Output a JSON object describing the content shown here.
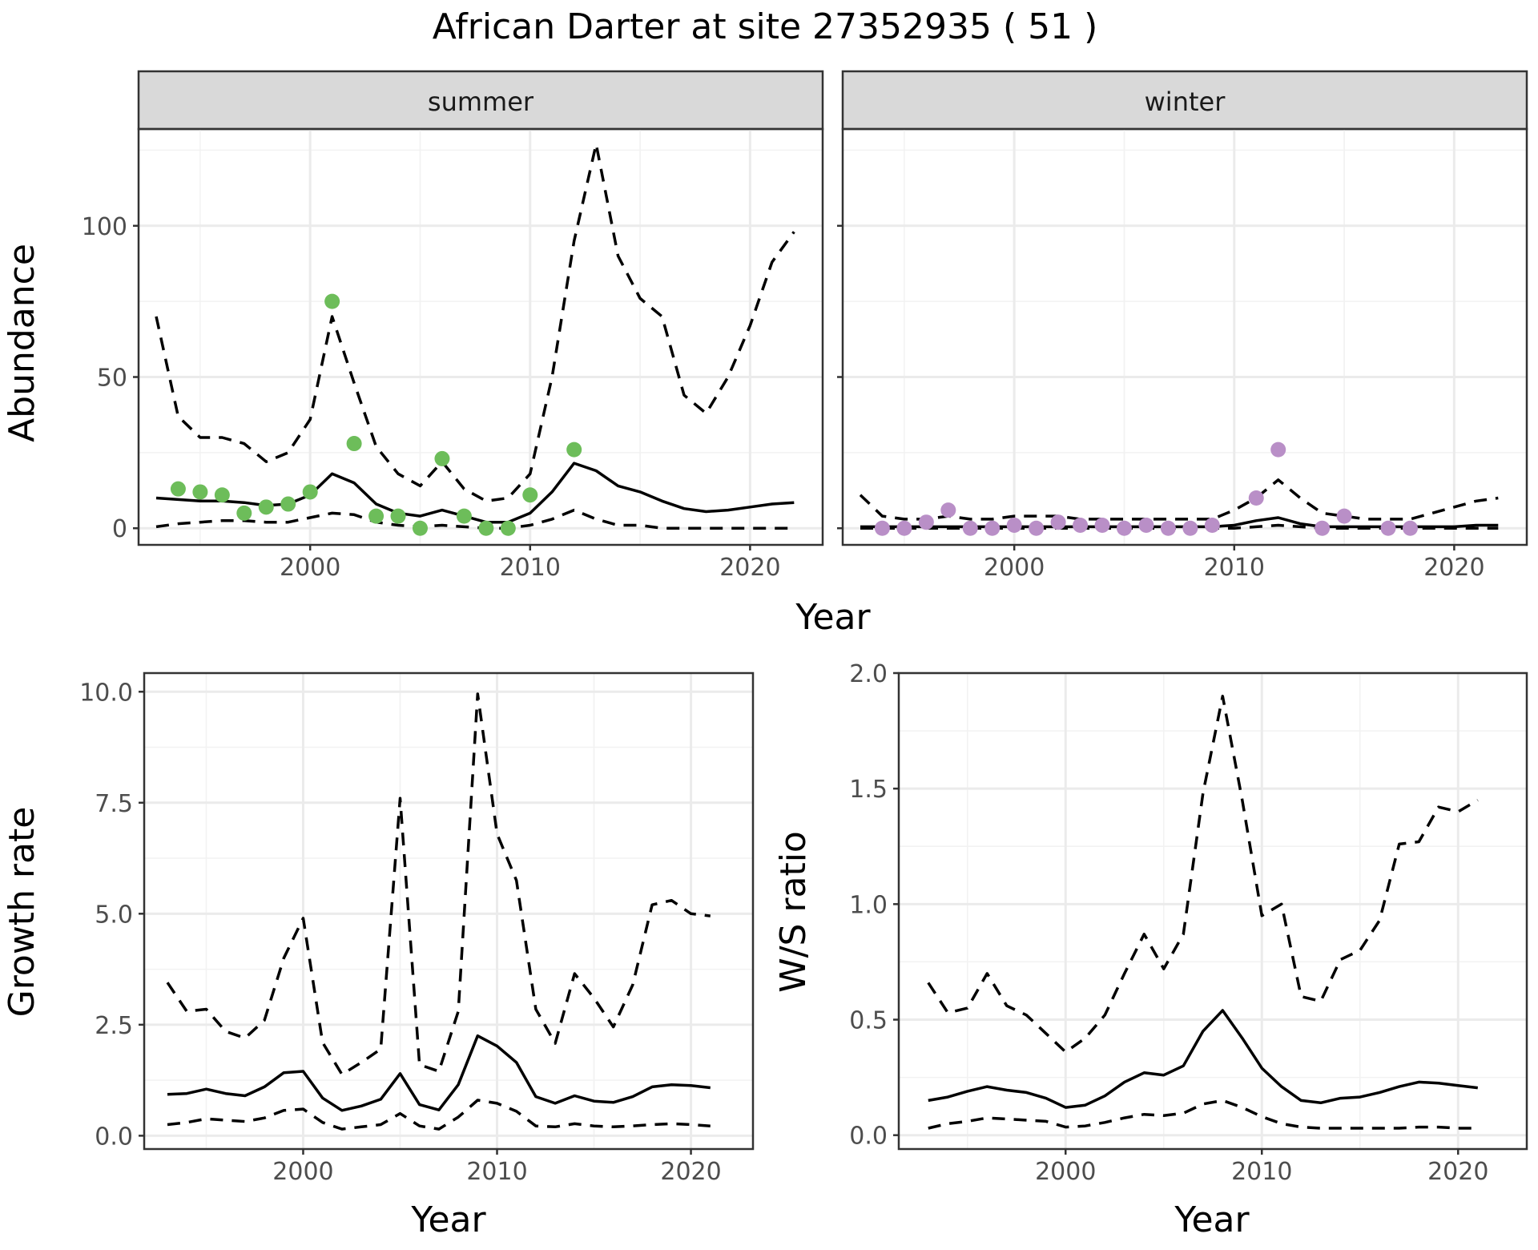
{
  "chart_data": {
    "type": "line",
    "title": "African Darter at site 27352935 ( 51 )",
    "colors": {
      "summer_points": "#6dbd5a",
      "winter_points": "#b98fc7",
      "lines": "#000000"
    },
    "panels": [
      {
        "id": "summer",
        "strip": "summer",
        "xlabel": "",
        "ylabel": "Abundance",
        "xlim": [
          1992.2,
          2023.3
        ],
        "ylim": [
          -5.5,
          132
        ],
        "xticks": [
          2000,
          2010,
          2020
        ],
        "yticks": [
          0,
          50,
          100
        ],
        "ytick_labels": [
          "0",
          "50",
          "100"
        ],
        "grid": true,
        "series": [
          {
            "role": "mean",
            "style": "solid",
            "x": [
              1993,
              1994,
              1995,
              1996,
              1997,
              1998,
              1999,
              2000,
              2001,
              2002,
              2003,
              2004,
              2005,
              2006,
              2007,
              2008,
              2009,
              2010,
              2011,
              2012,
              2013,
              2014,
              2015,
              2016,
              2017,
              2018,
              2019,
              2020,
              2021,
              2022
            ],
            "y": [
              10,
              9.5,
              9,
              9,
              8.5,
              7.5,
              8,
              11,
              18,
              15,
              8,
              5,
              4,
              6,
              4,
              2,
              2,
              5,
              12,
              21.5,
              19,
              14,
              12,
              9,
              6.5,
              5.5,
              6,
              7,
              8,
              8.5
            ]
          },
          {
            "role": "upper",
            "style": "dashed",
            "x": [
              1993,
              1994,
              1995,
              1996,
              1997,
              1998,
              1999,
              2000,
              2001,
              2002,
              2003,
              2004,
              2005,
              2006,
              2007,
              2008,
              2009,
              2010,
              2011,
              2012,
              2013,
              2014,
              2015,
              2016,
              2017,
              2018,
              2019,
              2020,
              2021,
              2022
            ],
            "y": [
              70,
              37,
              30,
              30,
              28,
              22,
              25,
              36,
              70,
              48,
              27,
              18,
              14,
              22,
              13,
              9,
              10,
              18,
              50,
              95,
              127,
              90,
              76,
              70,
              44,
              38,
              50,
              67,
              88,
              98
            ]
          },
          {
            "role": "lower",
            "style": "dashed",
            "x": [
              1993,
              1994,
              1995,
              1996,
              1997,
              1998,
              1999,
              2000,
              2001,
              2002,
              2003,
              2004,
              2005,
              2006,
              2007,
              2008,
              2009,
              2010,
              2011,
              2012,
              2013,
              2014,
              2015,
              2016,
              2017,
              2018,
              2019,
              2020,
              2021,
              2022
            ],
            "y": [
              0.5,
              1.5,
              2,
              2.5,
              2.5,
              2,
              2,
              3.5,
              5,
              4.5,
              2,
              1,
              0.5,
              1,
              0.5,
              0,
              0,
              1,
              3,
              6,
              3,
              1,
              1,
              0,
              0,
              0,
              0,
              0,
              0,
              0
            ]
          },
          {
            "role": "observed",
            "style": "points",
            "color": "#6dbd5a",
            "x": [
              1994,
              1995,
              1996,
              1997,
              1998,
              1999,
              2000,
              2001,
              2002,
              2003,
              2004,
              2005,
              2006,
              2007,
              2008,
              2009,
              2010,
              2012
            ],
            "y": [
              13,
              12,
              11,
              5,
              7,
              8,
              12,
              75,
              28,
              4,
              4,
              0,
              23,
              4,
              0,
              0,
              11,
              26
            ]
          }
        ]
      },
      {
        "id": "winter",
        "strip": "winter",
        "xlabel": "",
        "ylabel": "",
        "xlim": [
          1992.2,
          2023.3
        ],
        "ylim": [
          -5.5,
          132
        ],
        "xticks": [
          2000,
          2010,
          2020
        ],
        "yticks": [
          0,
          50,
          100
        ],
        "ytick_labels": [
          "",
          "",
          ""
        ],
        "grid": true,
        "series": [
          {
            "role": "mean",
            "style": "solid",
            "x": [
              1993,
              1994,
              1995,
              1996,
              1997,
              1998,
              1999,
              2000,
              2001,
              2002,
              2003,
              2004,
              2005,
              2006,
              2007,
              2008,
              2009,
              2010,
              2011,
              2012,
              2013,
              2014,
              2015,
              2016,
              2017,
              2018,
              2019,
              2020,
              2021,
              2022
            ],
            "y": [
              0.5,
              0.5,
              0.5,
              0.5,
              0.5,
              0.5,
              0.5,
              0.5,
              0.5,
              0.5,
              0.5,
              0.5,
              0.5,
              0.5,
              0.5,
              0.5,
              0.5,
              1,
              2.5,
              3.5,
              1.5,
              0.5,
              0.5,
              0.5,
              0.5,
              0.5,
              0.5,
              0.5,
              1,
              1
            ]
          },
          {
            "role": "upper",
            "style": "dashed",
            "x": [
              1993,
              1994,
              1995,
              1996,
              1997,
              1998,
              1999,
              2000,
              2001,
              2002,
              2003,
              2004,
              2005,
              2006,
              2007,
              2008,
              2009,
              2010,
              2011,
              2012,
              2013,
              2014,
              2015,
              2016,
              2017,
              2018,
              2019,
              2020,
              2021,
              2022
            ],
            "y": [
              11,
              4,
              3,
              3,
              4,
              3,
              3,
              4,
              4,
              4,
              3,
              3,
              3,
              3,
              3,
              3,
              3,
              6,
              10,
              16,
              10,
              5,
              4,
              3,
              3,
              3,
              5,
              7,
              9,
              10
            ]
          },
          {
            "role": "lower",
            "style": "dashed",
            "x": [
              1993,
              1994,
              1995,
              1996,
              1997,
              1998,
              1999,
              2000,
              2001,
              2002,
              2003,
              2004,
              2005,
              2006,
              2007,
              2008,
              2009,
              2010,
              2011,
              2012,
              2013,
              2014,
              2015,
              2016,
              2017,
              2018,
              2019,
              2020,
              2021,
              2022
            ],
            "y": [
              0,
              0,
              0,
              0,
              0,
              0,
              0,
              0,
              0,
              0,
              0,
              0,
              0,
              0,
              0,
              0,
              0,
              0,
              0.5,
              1,
              0.5,
              0,
              0,
              0,
              0,
              0,
              0,
              0,
              0,
              0
            ]
          },
          {
            "role": "observed",
            "style": "points",
            "color": "#b98fc7",
            "x": [
              1994,
              1995,
              1996,
              1997,
              1998,
              1999,
              2000,
              2001,
              2002,
              2003,
              2004,
              2005,
              2006,
              2007,
              2008,
              2009,
              2011,
              2012,
              2014,
              2015,
              2017,
              2018
            ],
            "y": [
              0,
              0,
              2,
              6,
              0,
              0,
              1,
              0,
              2,
              1,
              1,
              0,
              1,
              0,
              0,
              1,
              10,
              26,
              0,
              4,
              0,
              0
            ]
          }
        ]
      },
      {
        "id": "growth",
        "strip": "",
        "xlabel": "Year",
        "ylabel": "Growth rate",
        "xlim": [
          1991.8,
          2023.2
        ],
        "ylim": [
          -0.3,
          10.42
        ],
        "xticks": [
          2000,
          2010,
          2020
        ],
        "yticks": [
          0,
          2.5,
          5,
          7.5,
          10
        ],
        "ytick_labels": [
          "0.0",
          "2.5",
          "5.0",
          "7.5",
          "10.0"
        ],
        "grid": true,
        "series": [
          {
            "role": "mean",
            "style": "solid",
            "x": [
              1993,
              1994,
              1995,
              1996,
              1997,
              1998,
              1999,
              2000,
              2001,
              2002,
              2003,
              2004,
              2005,
              2006,
              2007,
              2008,
              2009,
              2010,
              2011,
              2012,
              2013,
              2014,
              2015,
              2016,
              2017,
              2018,
              2019,
              2020,
              2021
            ],
            "y": [
              0.93,
              0.95,
              1.05,
              0.95,
              0.9,
              1.1,
              1.42,
              1.45,
              0.85,
              0.57,
              0.67,
              0.82,
              1.4,
              0.7,
              0.58,
              1.15,
              2.25,
              2.02,
              1.65,
              0.88,
              0.73,
              0.9,
              0.78,
              0.75,
              0.88,
              1.1,
              1.15,
              1.13,
              1.08
            ]
          },
          {
            "role": "upper",
            "style": "dashed",
            "x": [
              1993,
              1994,
              1995,
              1996,
              1997,
              1998,
              1999,
              2000,
              2001,
              2002,
              2003,
              2004,
              2005,
              2006,
              2007,
              2008,
              2009,
              2010,
              2011,
              2012,
              2013,
              2014,
              2015,
              2016,
              2017,
              2018,
              2019,
              2020,
              2021
            ],
            "y": [
              3.45,
              2.8,
              2.85,
              2.35,
              2.2,
              2.6,
              4.0,
              4.9,
              2.1,
              1.38,
              1.65,
              1.95,
              7.6,
              1.6,
              1.45,
              2.8,
              9.95,
              6.8,
              5.75,
              2.85,
              2.08,
              3.65,
              3.1,
              2.45,
              3.4,
              5.2,
              5.3,
              5.0,
              4.95
            ]
          },
          {
            "role": "lower",
            "style": "dashed",
            "x": [
              1993,
              1994,
              1995,
              1996,
              1997,
              1998,
              1999,
              2000,
              2001,
              2002,
              2003,
              2004,
              2005,
              2006,
              2007,
              2008,
              2009,
              2010,
              2011,
              2012,
              2013,
              2014,
              2015,
              2016,
              2017,
              2018,
              2019,
              2020,
              2021
            ],
            "y": [
              0.25,
              0.3,
              0.38,
              0.35,
              0.32,
              0.4,
              0.57,
              0.6,
              0.3,
              0.15,
              0.2,
              0.25,
              0.5,
              0.22,
              0.15,
              0.42,
              0.8,
              0.73,
              0.55,
              0.22,
              0.2,
              0.27,
              0.22,
              0.2,
              0.22,
              0.25,
              0.27,
              0.25,
              0.22
            ]
          }
        ]
      },
      {
        "id": "ws_ratio",
        "strip": "",
        "xlabel": "Year",
        "ylabel": "W/S ratio",
        "xlim": [
          1991.5,
          2023.5
        ],
        "ylim": [
          -0.06,
          2.0
        ],
        "xticks": [
          2000,
          2010,
          2020
        ],
        "yticks": [
          0,
          0.5,
          1,
          1.5,
          2
        ],
        "ytick_labels": [
          "0.0",
          "0.5",
          "1.0",
          "1.5",
          "2.0"
        ],
        "grid": true,
        "series": [
          {
            "role": "mean",
            "style": "solid",
            "x": [
              1993,
              1994,
              1995,
              1996,
              1997,
              1998,
              1999,
              2000,
              2001,
              2002,
              2003,
              2004,
              2005,
              2006,
              2007,
              2008,
              2009,
              2010,
              2011,
              2012,
              2013,
              2014,
              2015,
              2016,
              2017,
              2018,
              2019,
              2020,
              2021
            ],
            "y": [
              0.15,
              0.165,
              0.19,
              0.21,
              0.195,
              0.185,
              0.16,
              0.12,
              0.13,
              0.17,
              0.23,
              0.27,
              0.26,
              0.3,
              0.45,
              0.54,
              0.42,
              0.29,
              0.21,
              0.15,
              0.14,
              0.16,
              0.165,
              0.185,
              0.21,
              0.23,
              0.225,
              0.215,
              0.205
            ]
          },
          {
            "role": "upper",
            "style": "dashed",
            "x": [
              1993,
              1994,
              1995,
              1996,
              1997,
              1998,
              1999,
              2000,
              2001,
              2002,
              2003,
              2004,
              2005,
              2006,
              2007,
              2008,
              2009,
              2010,
              2011,
              2012,
              2013,
              2014,
              2015,
              2016,
              2017,
              2018,
              2019,
              2020,
              2021
            ],
            "y": [
              0.66,
              0.53,
              0.55,
              0.7,
              0.56,
              0.52,
              0.44,
              0.36,
              0.42,
              0.52,
              0.7,
              0.87,
              0.72,
              0.87,
              1.48,
              1.9,
              1.45,
              0.95,
              1.0,
              0.6,
              0.58,
              0.76,
              0.8,
              0.93,
              1.26,
              1.27,
              1.42,
              1.4,
              1.45
            ]
          },
          {
            "role": "lower",
            "style": "dashed",
            "x": [
              1993,
              1994,
              1995,
              1996,
              1997,
              1998,
              1999,
              2000,
              2001,
              2002,
              2003,
              2004,
              2005,
              2006,
              2007,
              2008,
              2009,
              2010,
              2011,
              2012,
              2013,
              2014,
              2015,
              2016,
              2017,
              2018,
              2019,
              2020,
              2021
            ],
            "y": [
              0.03,
              0.05,
              0.06,
              0.075,
              0.07,
              0.065,
              0.06,
              0.035,
              0.04,
              0.055,
              0.075,
              0.09,
              0.085,
              0.095,
              0.135,
              0.15,
              0.12,
              0.08,
              0.05,
              0.035,
              0.03,
              0.03,
              0.03,
              0.03,
              0.03,
              0.035,
              0.035,
              0.03,
              0.03
            ]
          }
        ]
      }
    ],
    "shared_xlabel": "Year"
  }
}
